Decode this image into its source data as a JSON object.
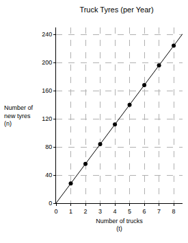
{
  "chart_data": {
    "type": "scatter",
    "title": "Truck Tyres (per Year)",
    "xlabel": "Number of trucks\n(t)",
    "ylabel": "Number of\nnew tyres\n(n)",
    "series": [
      {
        "type": "line",
        "color": "#000000",
        "line_style": "solid",
        "x": [
          0,
          8.6
        ],
        "values": [
          0,
          240.8
        ]
      },
      {
        "type": "scatter",
        "color": "#000000",
        "marker": "circle",
        "x": [
          1,
          2,
          3,
          4,
          5,
          6,
          7,
          8
        ],
        "values": [
          28,
          56,
          84,
          112,
          140,
          168,
          196,
          224
        ]
      }
    ],
    "xlim": [
      0,
      8.6
    ],
    "xticks": [
      0,
      1,
      2,
      3,
      4,
      5,
      6,
      7,
      8
    ],
    "ylim": [
      0,
      250
    ],
    "yticks": [
      0,
      40,
      80,
      120,
      160,
      200,
      240
    ],
    "grid": true
  }
}
